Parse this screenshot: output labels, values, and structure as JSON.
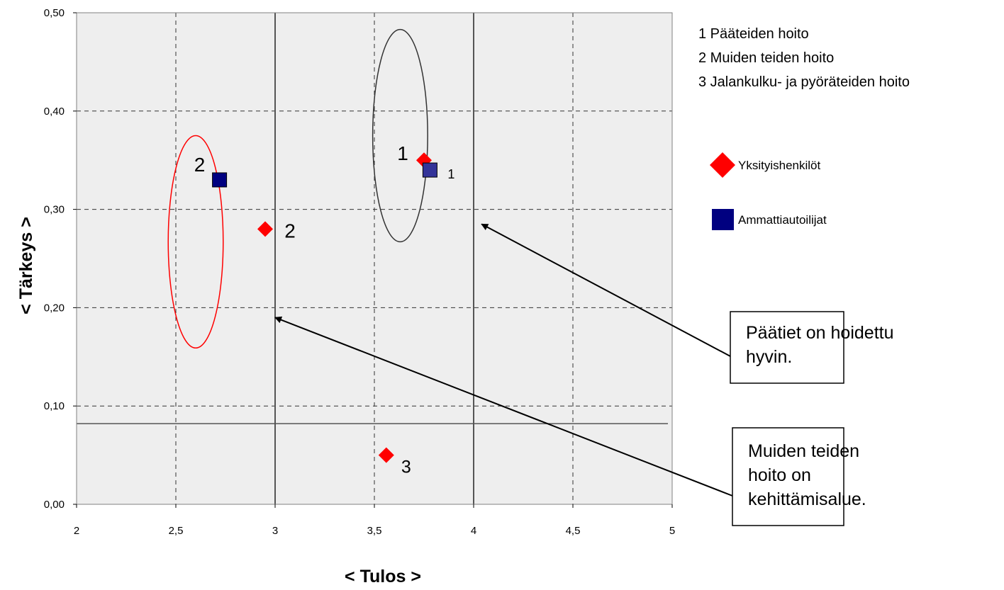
{
  "chart_data": {
    "type": "scatter",
    "xlabel": "< Tulos >",
    "ylabel": "< Tärkeys >",
    "xlim": [
      2,
      5
    ],
    "ylim": [
      0,
      0.5
    ],
    "x_ticks": [
      "2",
      "2,5",
      "3",
      "3,5",
      "4",
      "4,5",
      "5"
    ],
    "y_ticks": [
      "0,00",
      "0,10",
      "0,20",
      "0,30",
      "0,40",
      "0,50"
    ],
    "grid": true,
    "legend_position": "right",
    "category_legend": [
      "1 Pääteiden hoito",
      "2 Muiden teiden hoito",
      "3 Jalankulku- ja pyöräteiden hoito"
    ],
    "series": [
      {
        "name": "Yksityishenkilöt",
        "marker": "diamond",
        "color": "#ff0000",
        "points": [
          {
            "x": 3.75,
            "y": 0.35,
            "label": "1"
          },
          {
            "x": 2.95,
            "y": 0.28,
            "label": "2"
          },
          {
            "x": 3.56,
            "y": 0.05,
            "label": "3"
          }
        ]
      },
      {
        "name": "Ammattiautoilijat",
        "marker": "square",
        "color": "#000080",
        "points": [
          {
            "x": 3.78,
            "y": 0.34,
            "label": "1",
            "color": "#333399"
          },
          {
            "x": 2.72,
            "y": 0.33,
            "label": "2"
          }
        ]
      }
    ],
    "reference_lines": {
      "vertical_x": [
        3.0,
        4.0
      ],
      "horizontal_y": [
        0.082
      ]
    },
    "highlight_ellipses": [
      {
        "cx": 3.63,
        "cy": 0.375,
        "rx": 0.5,
        "ry": 0.108,
        "color": "#333333"
      },
      {
        "cx": 2.6,
        "cy": 0.267,
        "rx": 0.5,
        "ry": 0.108,
        "color": "#ff0000"
      }
    ],
    "annotations": [
      {
        "text_lines": [
          "Päätiet on hoidettu",
          "hyvin."
        ],
        "arrow_target": {
          "x": 4.04,
          "y": 0.285
        }
      },
      {
        "text_lines": [
          "Muiden teiden",
          "hoito on",
          "kehittämisalue."
        ],
        "arrow_target": {
          "x": 3.0,
          "y": 0.19
        }
      }
    ]
  }
}
